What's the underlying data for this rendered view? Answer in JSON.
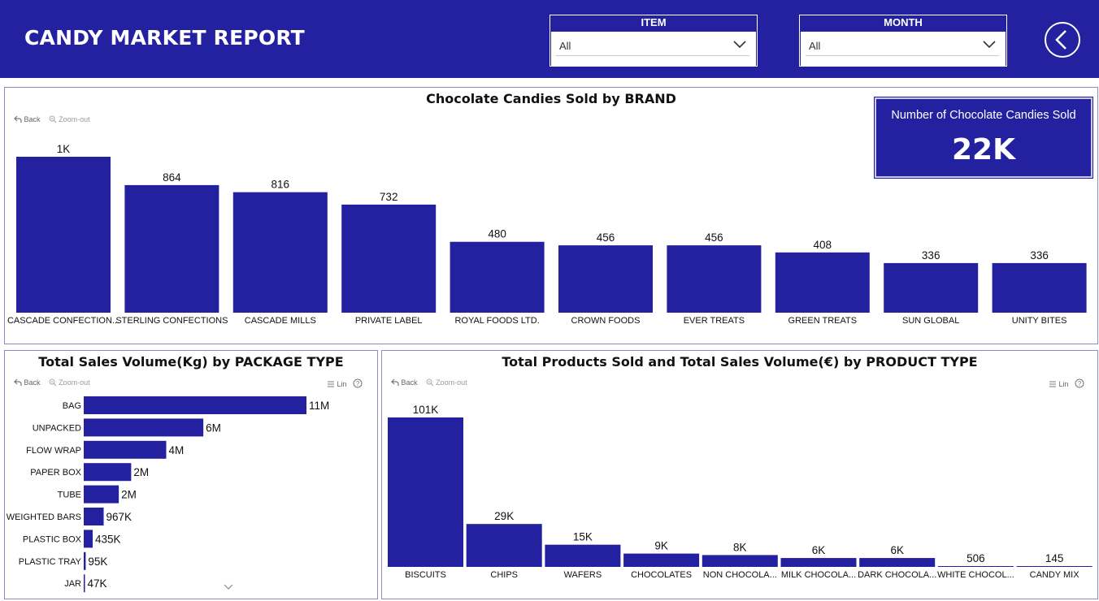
{
  "header": {
    "title": "CANDY MARKET REPORT",
    "item_slicer": {
      "label": "ITEM",
      "value": "All"
    },
    "month_slicer": {
      "label": "MONTH",
      "value": "All"
    },
    "bg_color": "#2321a0"
  },
  "toolbar": {
    "back_label": "Back",
    "zoom_label": "Zoom-out",
    "lin_label": "Lin"
  },
  "kpi": {
    "label": "Number of Chocolate Candies Sold",
    "value": "22K"
  },
  "chart_data": [
    {
      "type": "bar",
      "title": "Chocolate Candies Sold by BRAND",
      "categories": [
        "CASCADE CONFECTION...",
        "STERLING CONFECTIONS",
        "CASCADE MILLS",
        "PRIVATE LABEL",
        "ROYAL FOODS LTD.",
        "CROWN FOODS",
        "EVER TREATS",
        "GREEN TREATS",
        "SUN GLOBAL",
        "UNITY BITES"
      ],
      "values": [
        1056,
        864,
        816,
        732,
        480,
        456,
        456,
        408,
        336,
        336
      ],
      "labels": [
        "1K",
        "864",
        "816",
        "732",
        "480",
        "456",
        "456",
        "408",
        "336",
        "336"
      ],
      "color": "#2321a0"
    },
    {
      "type": "bar",
      "orientation": "horizontal",
      "title": "Total Sales Volume(Kg) by PACKAGE TYPE",
      "categories": [
        "BAG",
        "UNPACKED",
        "FLOW WRAP",
        "PAPER BOX",
        "TUBE",
        "WEIGHTED BARS",
        "PLASTIC BOX",
        "PLASTIC TRAY",
        "JAR"
      ],
      "values": [
        10800000,
        5800000,
        4000000,
        2300000,
        1700000,
        967000,
        435000,
        95000,
        47000
      ],
      "labels": [
        "11M",
        "6M",
        "4M",
        "2M",
        "2M",
        "967K",
        "435K",
        "95K",
        "47K"
      ],
      "color": "#2321a0"
    },
    {
      "type": "bar",
      "title": "Total Products Sold and Total Sales Volume(€) by PRODUCT TYPE",
      "categories": [
        "BISCUITS",
        "CHIPS",
        "WAFERS",
        "CHOCOLATES",
        "NON CHOCOLA...",
        "MILK CHOCOLA...",
        "DARK CHOCOLA...",
        "WHITE CHOCOL...",
        "CANDY MIX"
      ],
      "values": [
        101000,
        29000,
        15000,
        9000,
        8000,
        6000,
        6000,
        506,
        145
      ],
      "labels": [
        "101K",
        "29K",
        "15K",
        "9K",
        "8K",
        "6K",
        "6K",
        "506",
        "145"
      ],
      "color": "#2321a0"
    }
  ]
}
